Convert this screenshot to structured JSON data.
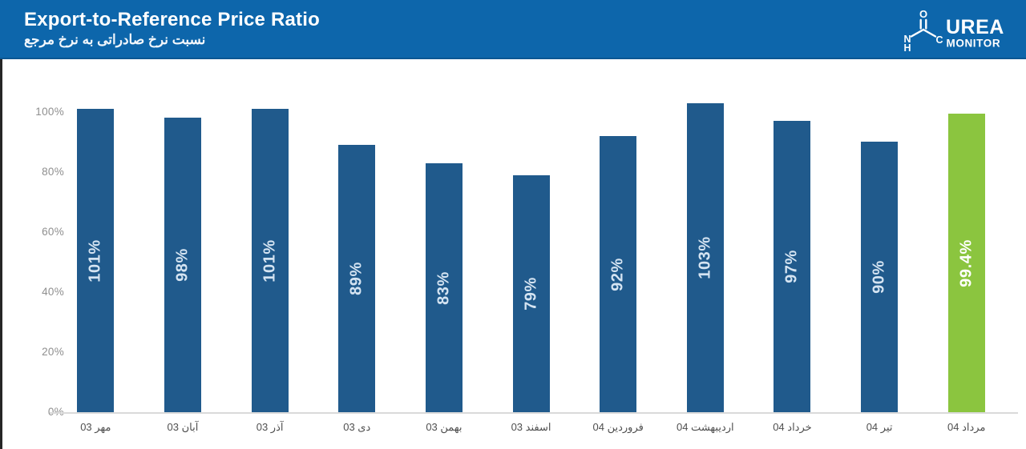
{
  "header": {
    "title": "Export-to-Reference Price Ratio",
    "subtitle_fa": "نسبت نرخ صادراتی به نرخ مرجع",
    "logo": {
      "brand": "UREA",
      "brand_sub": "MONITOR",
      "atom_o": "O",
      "atom_n": "N",
      "atom_h": "H",
      "atom_c": "C"
    }
  },
  "chart_data": {
    "type": "bar",
    "title": "Export-to-Reference Price Ratio",
    "subtitle": "نسبت نرخ صادراتی به نرخ مرجع",
    "categories": [
      "مهر 03",
      "آبان 03",
      "آذر 03",
      "دی 03",
      "بهمن 03",
      "اسفند 03",
      "فروردین 04",
      "اردیبهشت 04",
      "خرداد 04",
      "تیر 04",
      "مرداد 04"
    ],
    "values": [
      101,
      98,
      101,
      89,
      83,
      79,
      92,
      103,
      97,
      90,
      99.4
    ],
    "bar_labels": [
      "101%",
      "98%",
      "101%",
      "89%",
      "83%",
      "79%",
      "92%",
      "103%",
      "97%",
      "90%",
      "99.4%"
    ],
    "y_ticks": [
      {
        "label": "100%",
        "value": 100
      },
      {
        "label": "80%",
        "value": 80
      },
      {
        "label": "60%",
        "value": 60
      },
      {
        "label": "40%",
        "value": 40
      },
      {
        "label": "20%",
        "value": 20
      },
      {
        "label": "0%",
        "value": 0
      }
    ],
    "ylim": [
      0,
      110
    ],
    "grid": false,
    "legend": "none",
    "highlight_index": 10,
    "colors": {
      "bar": "#205a8c",
      "highlight": "#8bc53f",
      "bar_label": "#d5e4f2",
      "highlight_label": "#ffffff",
      "header_bg": "#0d66ab",
      "axis_line": "#dadada"
    }
  }
}
